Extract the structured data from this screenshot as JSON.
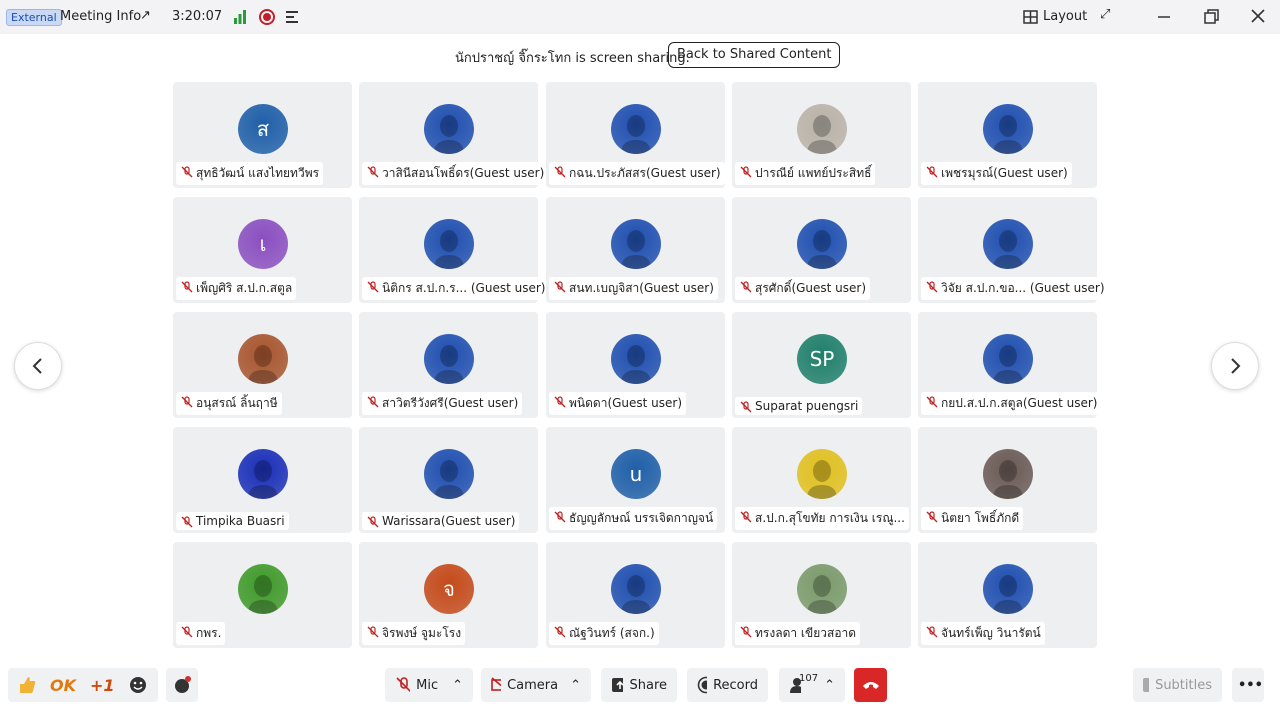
{
  "top_bar": {
    "badge": "External",
    "meeting_info": "Meeting Info",
    "timer": "3:20:07",
    "layout": "Layout"
  },
  "banner": {
    "message": "นักปราชญ์ จิ๊กระโทก is screen sharing.",
    "button": "Back to Shared Content"
  },
  "tiles": [
    {
      "name": "สุทธิวัฒน์ แสงไทยทวีพร",
      "initial": "ส",
      "color": "#1f5fa8"
    },
    {
      "name": "วาสินีสอนโพธิ์ดร(Guest user)",
      "color": "#1f4fb0"
    },
    {
      "name": "กฉน.ประภัสสร(Guest user)",
      "color": "#1f4fb0"
    },
    {
      "name": "ปารณีย์ แพทย์ประสิทธิ์",
      "color": "#b9b2a8"
    },
    {
      "name": "เพชรมุรณ์(Guest user)",
      "color": "#1f4fb0"
    },
    {
      "name": "เพ็ญศิริ ส.ป.ก.สตูล",
      "initial": "เ",
      "color": "#8a4fc0"
    },
    {
      "name": "นิติกร ส.ป.ก.ร... (Guest user)",
      "color": "#1f4fb0"
    },
    {
      "name": "สนท.เบญจิสา(Guest user)",
      "color": "#1f4fb0"
    },
    {
      "name": "สุรศักดิ์(Guest user)",
      "color": "#1f4fb0"
    },
    {
      "name": "วิจัย ส.ป.ก.ขอ... (Guest user)",
      "color": "#1f4fb0"
    },
    {
      "name": "อนุสรณ์ ลิ้นฤาษี",
      "color": "#a8552e"
    },
    {
      "name": "สาวิตรีวังศรี(Guest user)",
      "color": "#1f4fb0"
    },
    {
      "name": "พนิดดา(Guest user)",
      "color": "#1f4fb0"
    },
    {
      "name": "Suparat puengsri",
      "initial": "SP",
      "color": "#1f7f6a"
    },
    {
      "name": "กยป.ส.ป.ก.สตูล(Guest user)",
      "color": "#1f4fb0"
    },
    {
      "name": "Timpika Buasri",
      "color": "#1a2fb8"
    },
    {
      "name": "Warissara(Guest user)",
      "color": "#1f4fb0"
    },
    {
      "name": "ธัญญลักษณ์ บรรเจิดกาญจน์",
      "initial": "u",
      "color": "#1f5fa8"
    },
    {
      "name": "ส.ป.ก.สุโขทัย การเงิน เรณู...",
      "color": "#e0c020"
    },
    {
      "name": "นิตยา โพธิ์ภักดี",
      "color": "#6a5a55"
    },
    {
      "name": "กพร.",
      "color": "#3f9a2a"
    },
    {
      "name": "จิรพงษ์ จูมะโรง",
      "initial": "จ",
      "color": "#c44a1a"
    },
    {
      "name": "ณัฐวินทร์ (สจก.)",
      "color": "#1f4fb0"
    },
    {
      "name": "ทรงลดา เขียวสอาด",
      "color": "#7a9a6a"
    },
    {
      "name": "จันทร์เพ็ญ วินารัตน์",
      "color": "#1f4fb0"
    }
  ],
  "bottom_bar": {
    "ok": "OK",
    "plus_one": "+1",
    "mic": "Mic",
    "camera": "Camera",
    "share": "Share",
    "record": "Record",
    "participants": "107",
    "subtitles": "Subtitles"
  }
}
